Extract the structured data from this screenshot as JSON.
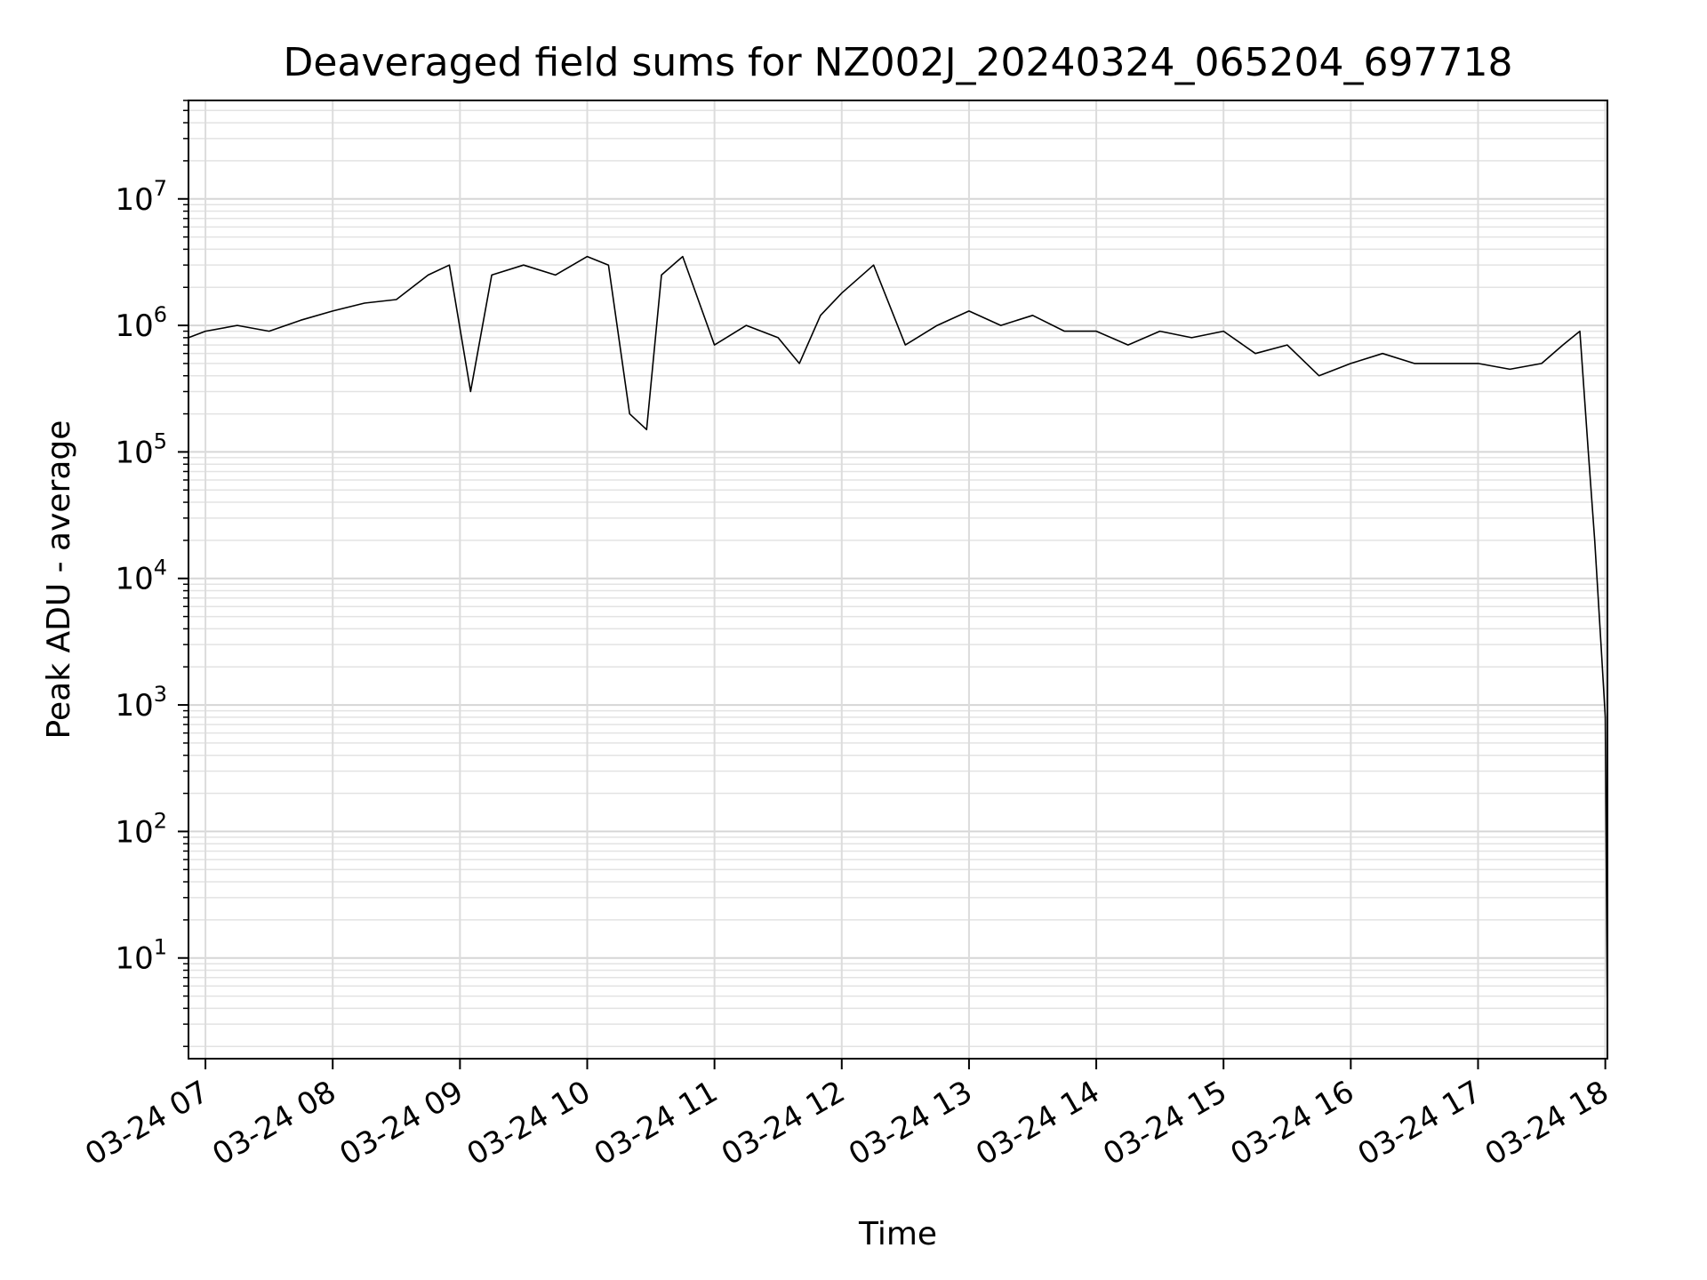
{
  "chart_data": {
    "type": "line",
    "title": "Deaveraged field sums for NZ002J_20240324_065204_697718",
    "xlabel": "Time",
    "ylabel": "Peak ADU - average",
    "yscale": "log",
    "grid": true,
    "xlim": [
      "2024-03-24 06:52",
      "2024-03-24 18:01"
    ],
    "ylim": [
      1.6,
      60000000
    ],
    "x_ticks": [
      {
        "value": "2024-03-24 07:00",
        "label": "03-24 07"
      },
      {
        "value": "2024-03-24 08:00",
        "label": "03-24 08"
      },
      {
        "value": "2024-03-24 09:00",
        "label": "03-24 09"
      },
      {
        "value": "2024-03-24 10:00",
        "label": "03-24 10"
      },
      {
        "value": "2024-03-24 11:00",
        "label": "03-24 11"
      },
      {
        "value": "2024-03-24 12:00",
        "label": "03-24 12"
      },
      {
        "value": "2024-03-24 13:00",
        "label": "03-24 13"
      },
      {
        "value": "2024-03-24 14:00",
        "label": "03-24 14"
      },
      {
        "value": "2024-03-24 15:00",
        "label": "03-24 15"
      },
      {
        "value": "2024-03-24 16:00",
        "label": "03-24 16"
      },
      {
        "value": "2024-03-24 17:00",
        "label": "03-24 17"
      },
      {
        "value": "2024-03-24 18:00",
        "label": "03-24 18"
      }
    ],
    "y_ticks": [
      {
        "value": 10,
        "base": "10",
        "exp": "1"
      },
      {
        "value": 100,
        "base": "10",
        "exp": "2"
      },
      {
        "value": 1000,
        "base": "10",
        "exp": "3"
      },
      {
        "value": 10000,
        "base": "10",
        "exp": "4"
      },
      {
        "value": 100000,
        "base": "10",
        "exp": "5"
      },
      {
        "value": 1000000,
        "base": "10",
        "exp": "6"
      },
      {
        "value": 10000000,
        "base": "10",
        "exp": "7"
      }
    ],
    "series": [
      {
        "color": "#000000",
        "x": [
          "2024-03-24 06:52",
          "2024-03-24 07:00",
          "2024-03-24 07:15",
          "2024-03-24 07:30",
          "2024-03-24 07:45",
          "2024-03-24 08:00",
          "2024-03-24 08:15",
          "2024-03-24 08:30",
          "2024-03-24 08:45",
          "2024-03-24 08:55",
          "2024-03-24 09:05",
          "2024-03-24 09:15",
          "2024-03-24 09:30",
          "2024-03-24 09:45",
          "2024-03-24 10:00",
          "2024-03-24 10:10",
          "2024-03-24 10:20",
          "2024-03-24 10:28",
          "2024-03-24 10:35",
          "2024-03-24 10:45",
          "2024-03-24 11:00",
          "2024-03-24 11:15",
          "2024-03-24 11:30",
          "2024-03-24 11:40",
          "2024-03-24 11:50",
          "2024-03-24 12:00",
          "2024-03-24 12:15",
          "2024-03-24 12:30",
          "2024-03-24 12:45",
          "2024-03-24 13:00",
          "2024-03-24 13:15",
          "2024-03-24 13:30",
          "2024-03-24 13:45",
          "2024-03-24 14:00",
          "2024-03-24 14:15",
          "2024-03-24 14:30",
          "2024-03-24 14:45",
          "2024-03-24 15:00",
          "2024-03-24 15:15",
          "2024-03-24 15:30",
          "2024-03-24 15:45",
          "2024-03-24 16:00",
          "2024-03-24 16:15",
          "2024-03-24 16:30",
          "2024-03-24 16:45",
          "2024-03-24 17:00",
          "2024-03-24 17:15",
          "2024-03-24 17:30",
          "2024-03-24 17:40",
          "2024-03-24 17:48",
          "2024-03-24 17:52",
          "2024-03-24 17:55",
          "2024-03-24 17:58",
          "2024-03-24 18:00",
          "2024-03-24 18:01"
        ],
        "values": [
          800000,
          900000,
          1000000,
          900000,
          1100000,
          1300000,
          1500000,
          1600000,
          2500000,
          3000000,
          300000,
          2500000,
          3000000,
          2500000,
          3500000,
          3000000,
          200000,
          150000,
          2500000,
          3500000,
          700000,
          1000000,
          800000,
          500000,
          1200000,
          1800000,
          3000000,
          700000,
          1000000,
          1300000,
          1000000,
          1200000,
          900000,
          900000,
          700000,
          900000,
          800000,
          900000,
          600000,
          700000,
          400000,
          500000,
          600000,
          500000,
          500000,
          500000,
          450000,
          500000,
          700000,
          900000,
          100000,
          20000,
          3000,
          800,
          3
        ]
      }
    ]
  }
}
